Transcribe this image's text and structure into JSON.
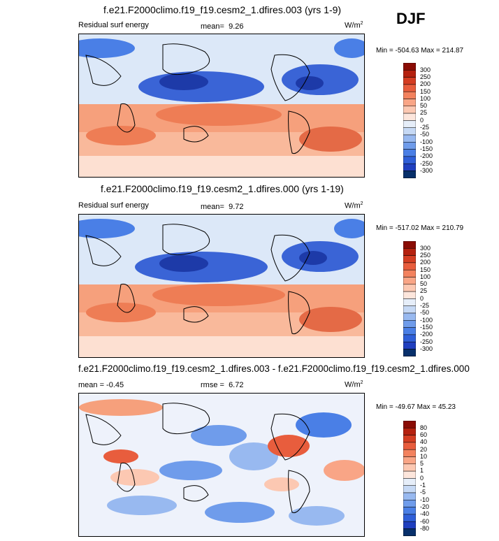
{
  "season": "DJF",
  "colors": {
    "scale": [
      "#08306b",
      "#1f3fbf",
      "#2f5fd8",
      "#4a7fe6",
      "#6f9ceb",
      "#98b9f0",
      "#c6d9f5",
      "#e6eef9",
      "#fde6dc",
      "#fcc8b2",
      "#f9a586",
      "#f3825e",
      "#e85d3d",
      "#d43d22",
      "#b5210f",
      "#8a0c05"
    ]
  },
  "chart_data": [
    {
      "type": "heatmap",
      "title": "f.e21.F2000climo.f19_f19.cesm2_1.dfires.003 (yrs 1-9)",
      "left_label": "Residual surf energy",
      "stat_label": "mean=",
      "stat_value": "9.26",
      "units": "W/m",
      "units_sup": "2",
      "min_label": "Min = -504.63",
      "max_label": "Max = 214.87",
      "levels": [
        "300",
        "250",
        "200",
        "150",
        "100",
        "50",
        "25",
        "0",
        "-25",
        "-50",
        "-100",
        "-150",
        "-200",
        "-250",
        "-300"
      ]
    },
    {
      "type": "heatmap",
      "title": "f.e21.F2000climo.f19_f19.cesm2_1.dfires.000 (yrs 1-19)",
      "left_label": "Residual surf energy",
      "stat_label": "mean=",
      "stat_value": "9.72",
      "units": "W/m",
      "units_sup": "2",
      "min_label": "Min = -517.02",
      "max_label": "Max = 210.79",
      "levels": [
        "300",
        "250",
        "200",
        "150",
        "100",
        "50",
        "25",
        "0",
        "-25",
        "-50",
        "-100",
        "-150",
        "-200",
        "-250",
        "-300"
      ]
    },
    {
      "type": "heatmap",
      "title": "f.e21.F2000climo.f19_f19.cesm2_1.dfires.003 - f.e21.F2000climo.f19_f19.cesm2_1.dfires.000",
      "left_label": "mean =  -0.45",
      "stat_label": "rmse =",
      "stat_value": "6.72",
      "units": "W/m",
      "units_sup": "2",
      "min_label": "Min = -49.67",
      "max_label": "Max = 45.23",
      "levels": [
        "80",
        "60",
        "40",
        "20",
        "10",
        "5",
        "1",
        "0",
        "-1",
        "-5",
        "-10",
        "-20",
        "-40",
        "-60",
        "-80"
      ]
    }
  ]
}
